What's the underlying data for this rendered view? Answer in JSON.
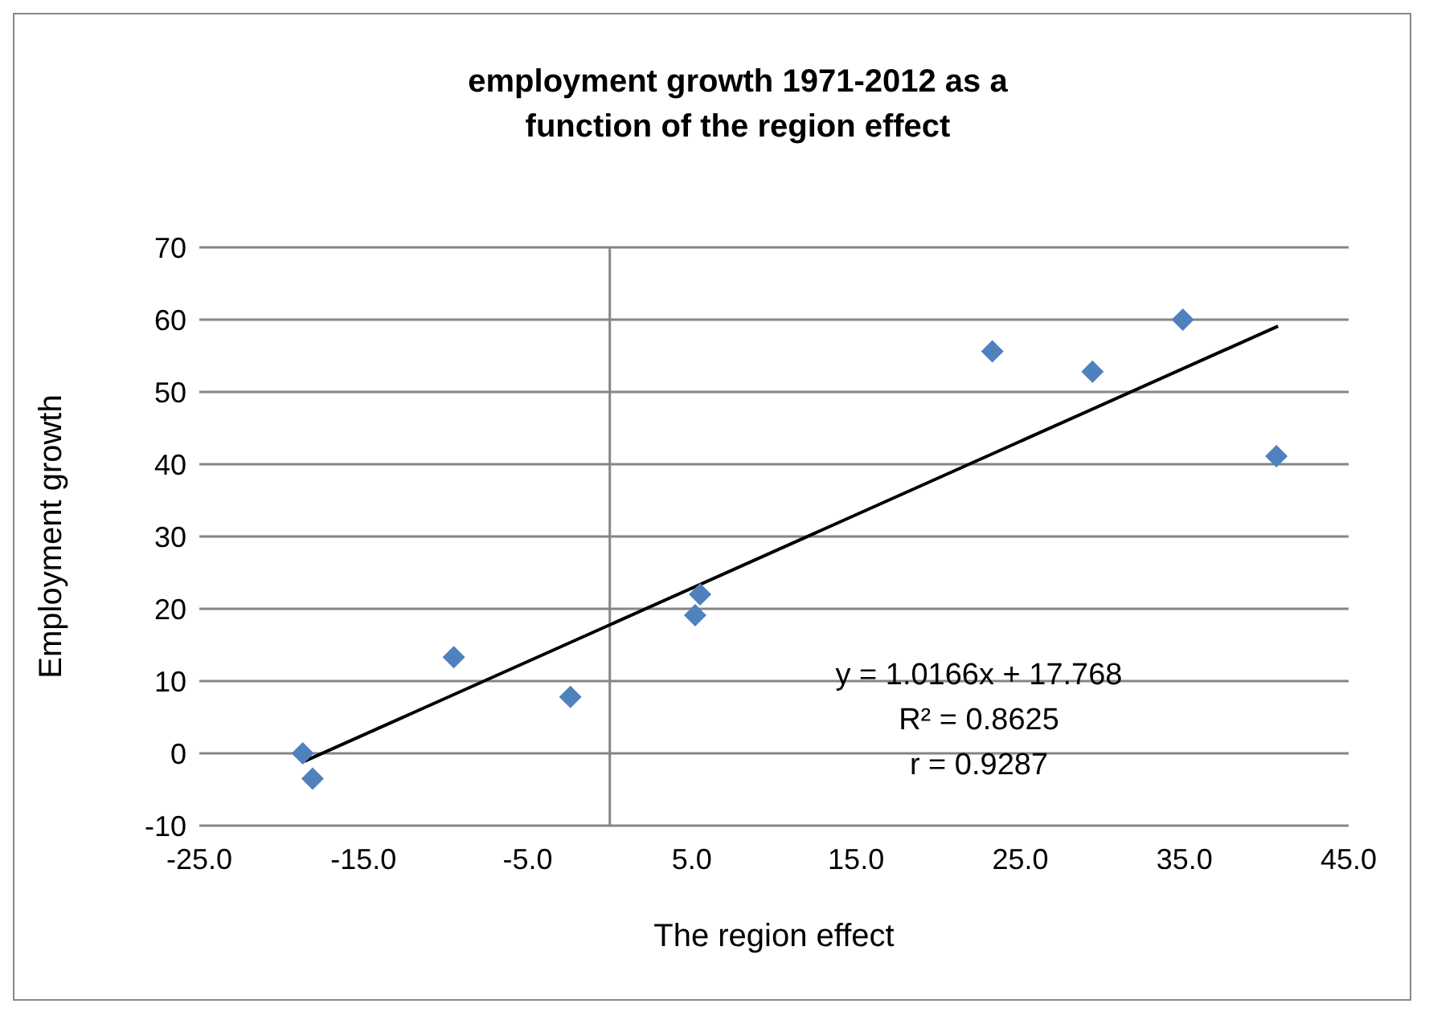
{
  "chart_data": {
    "type": "scatter",
    "title": "employment growth 1971-2012 as a function of the region effect",
    "xlabel": "The region effect",
    "ylabel": "Employment  growth",
    "xlim": [
      -25,
      45
    ],
    "xticks": [
      {
        "value": -25,
        "label": "-25.0"
      },
      {
        "value": -15,
        "label": "-15.0"
      },
      {
        "value": -5,
        "label": "-5.0"
      },
      {
        "value": 5,
        "label": "5.0"
      },
      {
        "value": 15,
        "label": "15.0"
      },
      {
        "value": 25,
        "label": "25.0"
      },
      {
        "value": 35,
        "label": "35.0"
      },
      {
        "value": 45,
        "label": "45.0"
      }
    ],
    "ylim": [
      -10,
      70
    ],
    "yticks": [
      -10,
      0,
      10,
      20,
      30,
      40,
      50,
      60,
      70
    ],
    "grid": "y",
    "ref_lines": [
      {
        "axis": "x",
        "value": 0,
        "color": "#868686"
      }
    ],
    "series": [
      {
        "color": "#4f81bd",
        "marker": "diamond",
        "x": [
          -18.7,
          -18.1,
          -9.5,
          -2.4,
          5.2,
          5.5,
          23.3,
          29.4,
          34.9,
          40.6
        ],
        "values": [
          0,
          -3.5,
          13.3,
          7.8,
          19.1,
          22,
          55.6,
          52.8,
          60,
          41.1
        ]
      },
      {
        "type": "line",
        "color": "#000000",
        "marker": "none",
        "x": [
          -18.6,
          40.7
        ],
        "values": [
          -1.1,
          59.1
        ]
      }
    ],
    "annotations": [
      "y = 1.0166x + 17.768",
      "R² = 0.8625",
      "r = 0.9287"
    ]
  }
}
